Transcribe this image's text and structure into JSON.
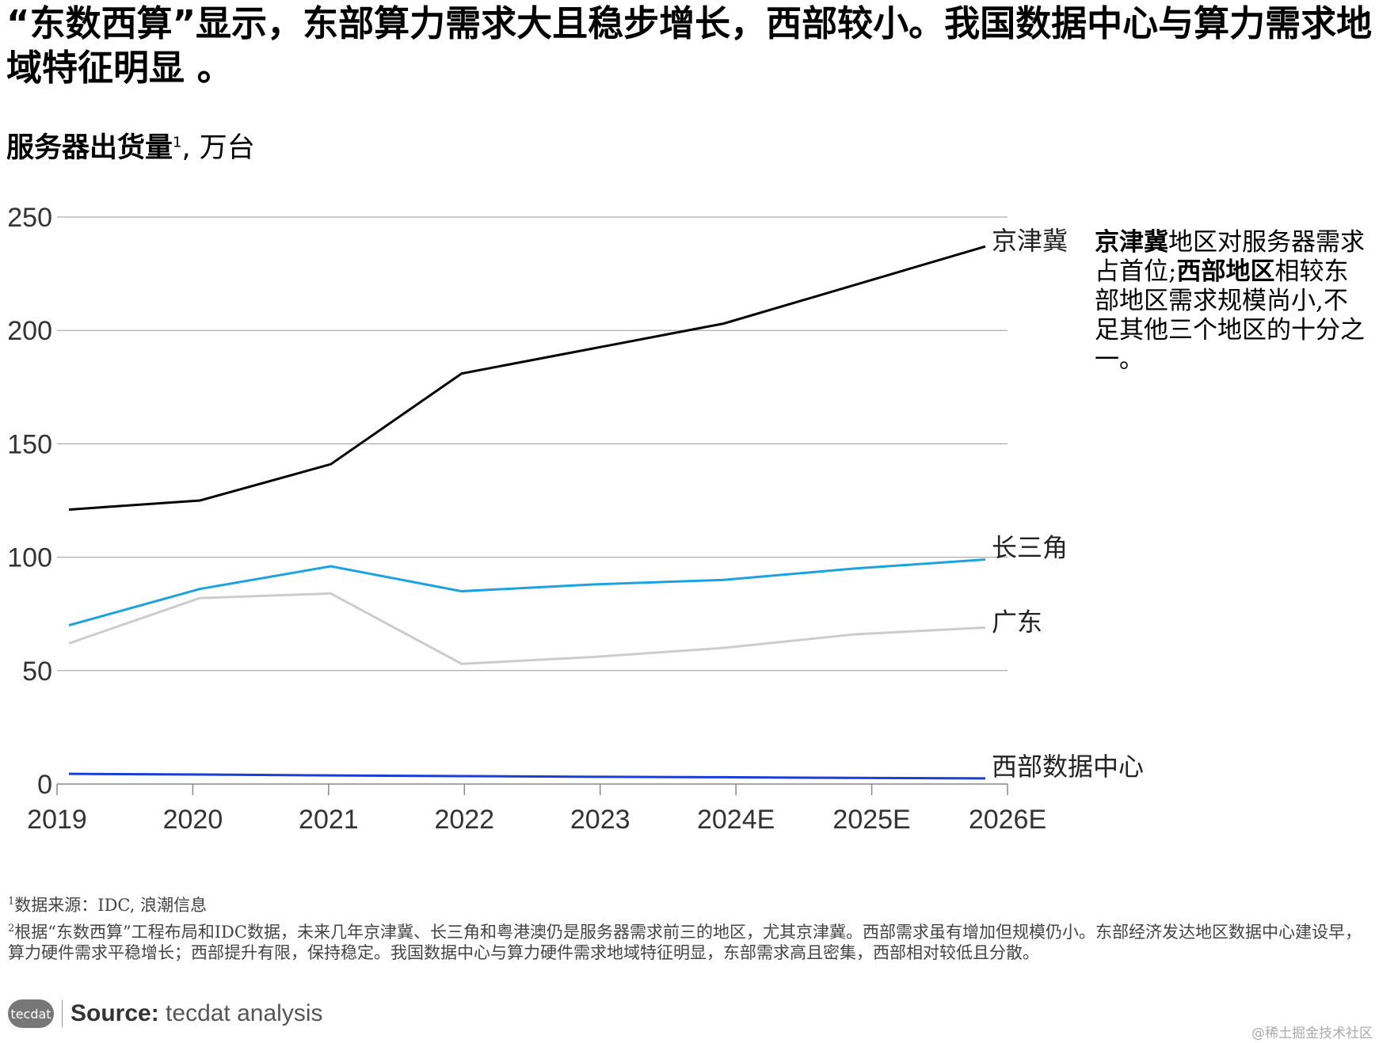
{
  "title": "“东数西算”显示，东部算力需求大且稳步增长，西部较小。我国数据中心与算力需求地域特征明显 。",
  "subtitle": {
    "label": "服务器出货量",
    "sup": "1",
    "unit": ", 万台"
  },
  "annotation": {
    "bold1": "京津冀",
    "text1": "地区对服务器需求占首位;",
    "bold2": "西部地区",
    "text2": "相较东部地区需求规模尚小,不足其他三个地区的十分之一。"
  },
  "footnotes": [
    {
      "sup": "1",
      "text": "数据来源：IDC, 浪潮信息"
    },
    {
      "sup": "2",
      "text": "根据“东数西算”工程布局和IDC数据，未来几年京津冀、长三角和粤港澳仍是服务器需求前三的地区，尤其京津冀。西部需求虽有增加但规模仍小。东部经济发达地区数据中心建设早，算力硬件需求平稳增长；西部提升有限，保持稳定。我国数据中心与算力硬件需求地域特征明显，东部需求高且密集，西部相对较低且分散。"
    }
  ],
  "source": {
    "logo": "tecdat",
    "label": "Source:",
    "text": "tecdat analysis"
  },
  "watermark": "@稀土掘金技术社区",
  "chart_data": {
    "type": "line",
    "categories": [
      "2019",
      "2020",
      "2021",
      "2022",
      "2023",
      "2024E",
      "2025E",
      "2026E"
    ],
    "ylim": [
      0,
      250
    ],
    "yticks": [
      "0",
      "50",
      "100",
      "150",
      "200",
      "250"
    ],
    "grid": true,
    "legend": "inline-right",
    "series": [
      {
        "name": "京津冀",
        "color": "#000000",
        "values": [
          121,
          125,
          141,
          181,
          192,
          203,
          220,
          237
        ]
      },
      {
        "name": "长三角",
        "color": "#1aa3e0",
        "values": [
          70,
          86,
          96,
          85,
          88,
          90,
          95,
          99
        ]
      },
      {
        "name": "广东",
        "color": "#cccccc",
        "values": [
          62,
          82,
          84,
          53,
          56,
          60,
          66,
          69
        ]
      },
      {
        "name": "西部数据中心",
        "color": "#1a3fd6",
        "values": [
          4.5,
          4.2,
          3.8,
          3.5,
          3.2,
          3.0,
          2.7,
          2.5
        ]
      }
    ]
  }
}
